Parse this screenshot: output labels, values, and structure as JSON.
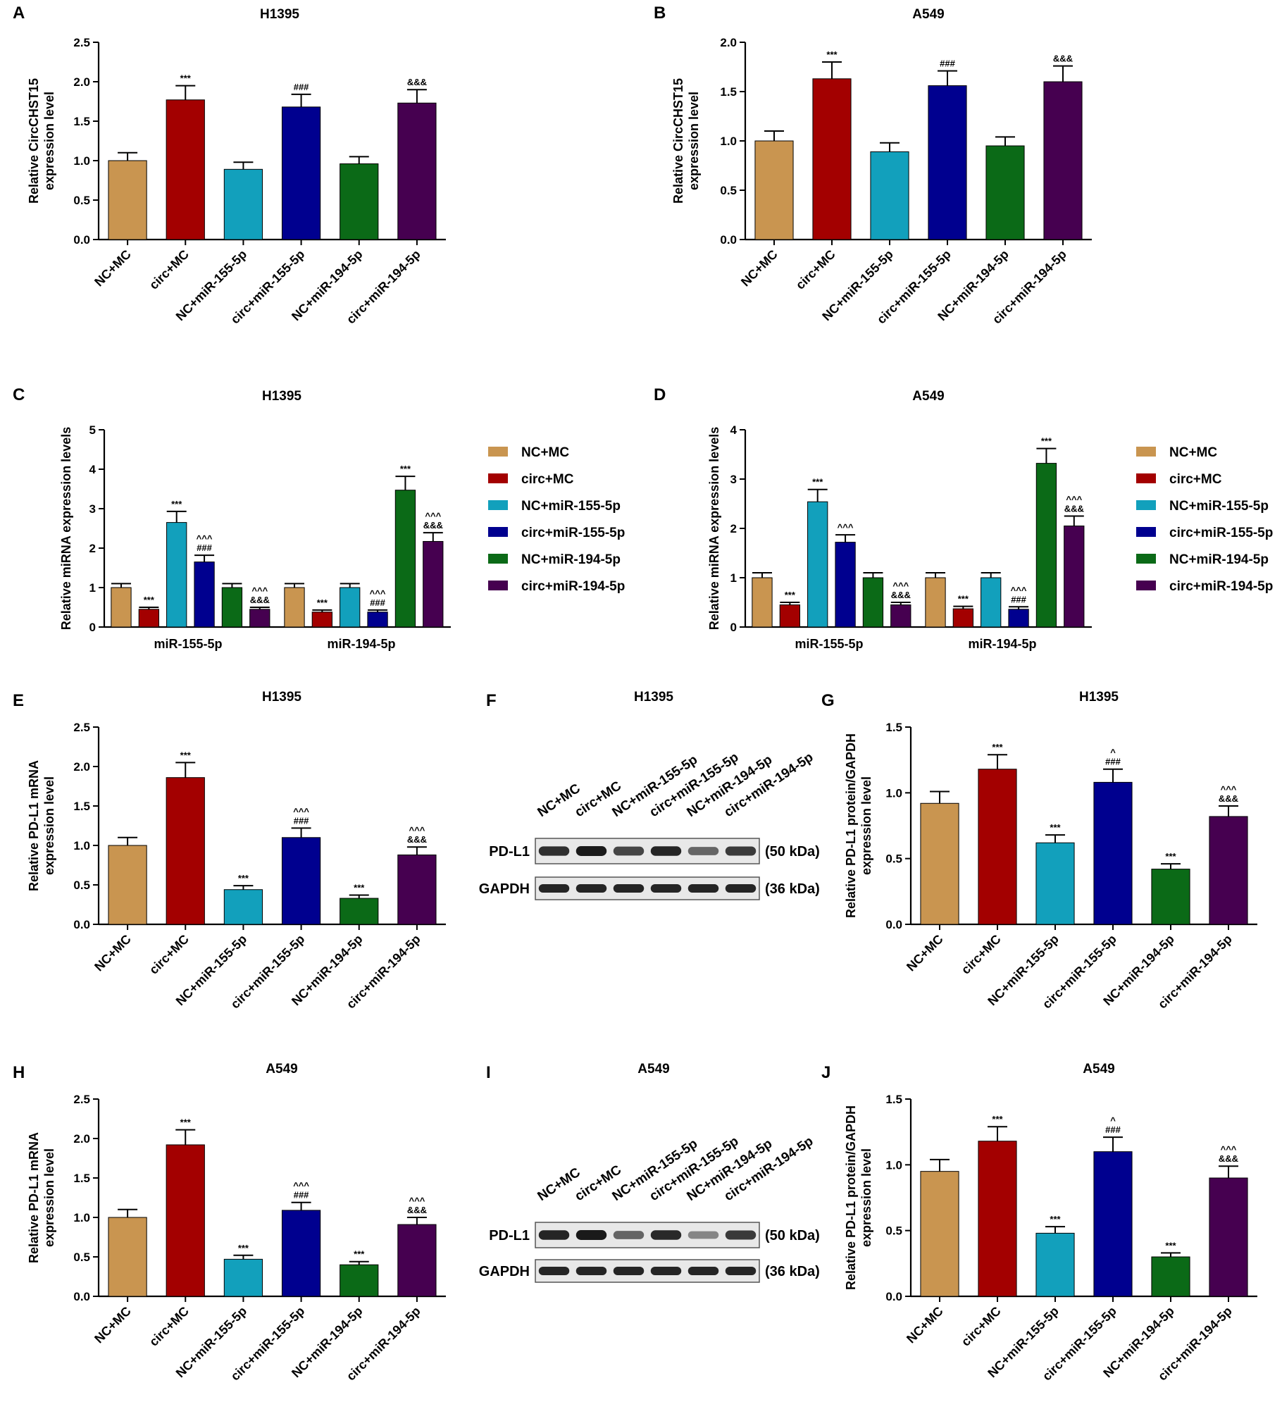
{
  "groups": [
    "NC+MC",
    "circ+MC",
    "NC+miR-155-5p",
    "circ+miR-155-5p",
    "NC+miR-194-5p",
    "circ+miR-194-5p"
  ],
  "colors": [
    "#C99550",
    "#A30000",
    "#12A0BC",
    "#00008F",
    "#0B6A17",
    "#460050"
  ],
  "chart_data": [
    {
      "panel": "A",
      "type": "bar",
      "title": "H1395",
      "ylabel": [
        "Relative CircCHST15",
        "expression level"
      ],
      "ylim": [
        0,
        2.5
      ],
      "yticks": [
        0,
        0.5,
        1.0,
        1.5,
        2.0,
        2.5
      ],
      "ytick_labels": [
        "0.0",
        "0.5",
        "1.0",
        "1.5",
        "2.0",
        "2.5"
      ],
      "values": [
        1.0,
        1.77,
        0.89,
        1.68,
        0.96,
        1.73
      ],
      "errors": [
        0.1,
        0.18,
        0.09,
        0.16,
        0.09,
        0.17
      ],
      "annotations": [
        [],
        [
          "***"
        ],
        [],
        [
          "###"
        ],
        [],
        [
          "&&&"
        ]
      ]
    },
    {
      "panel": "B",
      "type": "bar",
      "title": "A549",
      "ylabel": [
        "Relative CircCHST15",
        "expression level"
      ],
      "ylim": [
        0,
        2.0
      ],
      "yticks": [
        0,
        0.5,
        1.0,
        1.5,
        2.0
      ],
      "ytick_labels": [
        "0.0",
        "0.5",
        "1.0",
        "1.5",
        "2.0"
      ],
      "values": [
        1.0,
        1.63,
        0.89,
        1.56,
        0.95,
        1.6
      ],
      "errors": [
        0.1,
        0.17,
        0.09,
        0.15,
        0.09,
        0.16
      ],
      "annotations": [
        [],
        [
          "***"
        ],
        [],
        [
          "###"
        ],
        [],
        [
          "&&&"
        ]
      ]
    },
    {
      "panel": "C",
      "type": "grouped_bar",
      "title": "H1395",
      "ylabel": [
        "Relative miRNA expression levels"
      ],
      "ylim": [
        0,
        5
      ],
      "yticks": [
        0,
        1,
        2,
        3,
        4,
        5
      ],
      "ytick_labels": [
        "0",
        "1",
        "2",
        "3",
        "4",
        "5"
      ],
      "categories": [
        "miR-155-5p",
        "miR-194-5p"
      ],
      "series": [
        {
          "name": "NC+MC",
          "values": [
            1.0,
            1.0
          ],
          "errors": [
            0.1,
            0.1
          ],
          "annotations": [
            [],
            []
          ]
        },
        {
          "name": "circ+MC",
          "values": [
            0.45,
            0.38
          ],
          "errors": [
            0.05,
            0.05
          ],
          "annotations": [
            [
              "***"
            ],
            [
              "***"
            ]
          ]
        },
        {
          "name": "NC+miR-155-5p",
          "values": [
            2.65,
            1.0
          ],
          "errors": [
            0.28,
            0.1
          ],
          "annotations": [
            [
              "***"
            ],
            []
          ]
        },
        {
          "name": "circ+miR-155-5p",
          "values": [
            1.65,
            0.38
          ],
          "errors": [
            0.17,
            0.05
          ],
          "annotations": [
            [
              "###",
              "^^^"
            ],
            [
              "###",
              "^^^"
            ]
          ]
        },
        {
          "name": "NC+miR-194-5p",
          "values": [
            1.0,
            3.47
          ],
          "errors": [
            0.1,
            0.35
          ],
          "annotations": [
            [],
            [
              "***"
            ]
          ]
        },
        {
          "name": "circ+miR-194-5p",
          "values": [
            0.45,
            2.17
          ],
          "errors": [
            0.05,
            0.22
          ],
          "annotations": [
            [
              "&&&",
              "^^^"
            ],
            [
              "&&&",
              "^^^"
            ]
          ]
        }
      ]
    },
    {
      "panel": "D",
      "type": "grouped_bar",
      "title": "A549",
      "ylabel": [
        "Relative miRNA expression levels"
      ],
      "ylim": [
        0,
        4
      ],
      "yticks": [
        0,
        1,
        2,
        3,
        4
      ],
      "ytick_labels": [
        "0",
        "1",
        "2",
        "3",
        "4"
      ],
      "categories": [
        "miR-155-5p",
        "miR-194-5p"
      ],
      "series": [
        {
          "name": "NC+MC",
          "values": [
            1.0,
            1.0
          ],
          "errors": [
            0.1,
            0.1
          ],
          "annotations": [
            [],
            []
          ]
        },
        {
          "name": "circ+MC",
          "values": [
            0.45,
            0.37
          ],
          "errors": [
            0.05,
            0.05
          ],
          "annotations": [
            [
              "***"
            ],
            [
              "***"
            ]
          ]
        },
        {
          "name": "NC+miR-155-5p",
          "values": [
            2.54,
            1.0
          ],
          "errors": [
            0.25,
            0.1
          ],
          "annotations": [
            [
              "***"
            ],
            []
          ]
        },
        {
          "name": "circ+miR-155-5p",
          "values": [
            1.72,
            0.36
          ],
          "errors": [
            0.15,
            0.05
          ],
          "annotations": [
            [
              "^^^"
            ],
            [
              "###",
              "^^^"
            ]
          ]
        },
        {
          "name": "NC+miR-194-5p",
          "values": [
            1.0,
            3.32
          ],
          "errors": [
            0.1,
            0.3
          ],
          "annotations": [
            [],
            [
              "***"
            ]
          ]
        },
        {
          "name": "circ+miR-194-5p",
          "values": [
            0.45,
            2.05
          ],
          "errors": [
            0.05,
            0.2
          ],
          "annotations": [
            [
              "&&&",
              "^^^"
            ],
            [
              "&&&",
              "^^^"
            ]
          ]
        }
      ]
    },
    {
      "panel": "E",
      "type": "bar",
      "title": "H1395",
      "ylabel": [
        "Relative PD-L1 mRNA",
        "expression level"
      ],
      "ylim": [
        0,
        2.5
      ],
      "yticks": [
        0,
        0.5,
        1.0,
        1.5,
        2.0,
        2.5
      ],
      "ytick_labels": [
        "0.0",
        "0.5",
        "1.0",
        "1.5",
        "2.0",
        "2.5"
      ],
      "values": [
        1.0,
        1.86,
        0.44,
        1.1,
        0.33,
        0.88
      ],
      "errors": [
        0.1,
        0.19,
        0.05,
        0.12,
        0.04,
        0.1
      ],
      "annotations": [
        [],
        [
          "***"
        ],
        [
          "***"
        ],
        [
          "###",
          "^^^"
        ],
        [
          "***"
        ],
        [
          "&&&",
          "^^^"
        ]
      ]
    },
    {
      "panel": "G",
      "type": "bar",
      "title": "H1395",
      "ylabel": [
        "Relative PD-L1 protein/GAPDH",
        "expression level"
      ],
      "ylim": [
        0,
        1.5
      ],
      "yticks": [
        0,
        0.5,
        1.0,
        1.5
      ],
      "ytick_labels": [
        "0.0",
        "0.5",
        "1.0",
        "1.5"
      ],
      "values": [
        0.92,
        1.18,
        0.62,
        1.08,
        0.42,
        0.82
      ],
      "errors": [
        0.09,
        0.11,
        0.06,
        0.1,
        0.04,
        0.08
      ],
      "annotations": [
        [],
        [
          "***"
        ],
        [
          "***"
        ],
        [
          "###",
          "^"
        ],
        [
          "***"
        ],
        [
          "&&&",
          "^^^"
        ]
      ]
    },
    {
      "panel": "H",
      "type": "bar",
      "title": "A549",
      "ylabel": [
        "Relative PD-L1 mRNA",
        "expression level"
      ],
      "ylim": [
        0,
        2.5
      ],
      "yticks": [
        0,
        0.5,
        1.0,
        1.5,
        2.0,
        2.5
      ],
      "ytick_labels": [
        "0.0",
        "0.5",
        "1.0",
        "1.5",
        "2.0",
        "2.5"
      ],
      "values": [
        1.0,
        1.92,
        0.47,
        1.09,
        0.4,
        0.91
      ],
      "errors": [
        0.1,
        0.19,
        0.05,
        0.1,
        0.04,
        0.09
      ],
      "annotations": [
        [],
        [
          "***"
        ],
        [
          "***"
        ],
        [
          "###",
          "^^^"
        ],
        [
          "***"
        ],
        [
          "&&&",
          "^^^"
        ]
      ]
    },
    {
      "panel": "J",
      "type": "bar",
      "title": "A549",
      "ylabel": [
        "Relative PD-L1 protein/GAPDH",
        "expression level"
      ],
      "ylim": [
        0,
        1.5
      ],
      "yticks": [
        0,
        0.5,
        1.0,
        1.5
      ],
      "ytick_labels": [
        "0.0",
        "0.5",
        "1.0",
        "1.5"
      ],
      "values": [
        0.95,
        1.18,
        0.48,
        1.1,
        0.3,
        0.9
      ],
      "errors": [
        0.09,
        0.11,
        0.05,
        0.11,
        0.03,
        0.09
      ],
      "annotations": [
        [],
        [
          "***"
        ],
        [
          "***"
        ],
        [
          "###",
          "^"
        ],
        [
          "***"
        ],
        [
          "&&&",
          "^^^"
        ]
      ]
    }
  ],
  "blots": [
    {
      "panel": "F",
      "title": "H1395",
      "rows": [
        {
          "label": "PD-L1",
          "size": "(50 kDa)",
          "intensity": [
            0.85,
            0.95,
            0.75,
            0.9,
            0.6,
            0.8
          ]
        },
        {
          "label": "GAPDH",
          "size": "(36 kDa)",
          "intensity": [
            0.9,
            0.9,
            0.9,
            0.9,
            0.9,
            0.9
          ]
        }
      ]
    },
    {
      "panel": "I",
      "title": "A549",
      "rows": [
        {
          "label": "PD-L1",
          "size": "(50 kDa)",
          "intensity": [
            0.9,
            0.95,
            0.6,
            0.88,
            0.45,
            0.8
          ]
        },
        {
          "label": "GAPDH",
          "size": "(36 kDa)",
          "intensity": [
            0.9,
            0.9,
            0.9,
            0.9,
            0.9,
            0.9
          ]
        }
      ]
    }
  ]
}
